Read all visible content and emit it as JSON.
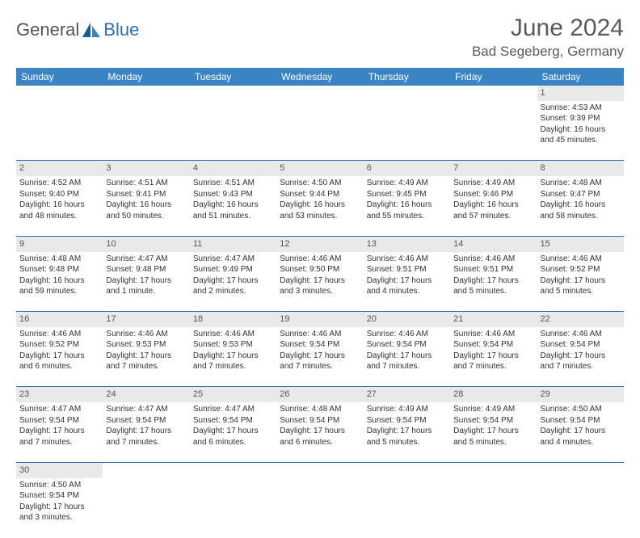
{
  "brand": {
    "name1": "General",
    "name2": "Blue"
  },
  "title": "June 2024",
  "location": "Bad Segeberg, Germany",
  "colors": {
    "header_bg": "#3b84c4",
    "header_fg": "#ffffff",
    "daynum_bg": "#e9e9e9",
    "rule": "#2f6fb0",
    "brand_blue": "#2f6fb0",
    "text": "#333333"
  },
  "fonts": {
    "title_pt": 30,
    "location_pt": 17,
    "th_pt": 12,
    "cell_pt": 10,
    "daynum_pt": 11
  },
  "day_headers": [
    "Sunday",
    "Monday",
    "Tuesday",
    "Wednesday",
    "Thursday",
    "Friday",
    "Saturday"
  ],
  "weeks": [
    {
      "nums": [
        "",
        "",
        "",
        "",
        "",
        "",
        "1"
      ],
      "cells": [
        null,
        null,
        null,
        null,
        null,
        null,
        {
          "sunrise": "Sunrise: 4:53 AM",
          "sunset": "Sunset: 9:39 PM",
          "day1": "Daylight: 16 hours",
          "day2": "and 45 minutes."
        }
      ]
    },
    {
      "nums": [
        "2",
        "3",
        "4",
        "5",
        "6",
        "7",
        "8"
      ],
      "cells": [
        {
          "sunrise": "Sunrise: 4:52 AM",
          "sunset": "Sunset: 9:40 PM",
          "day1": "Daylight: 16 hours",
          "day2": "and 48 minutes."
        },
        {
          "sunrise": "Sunrise: 4:51 AM",
          "sunset": "Sunset: 9:41 PM",
          "day1": "Daylight: 16 hours",
          "day2": "and 50 minutes."
        },
        {
          "sunrise": "Sunrise: 4:51 AM",
          "sunset": "Sunset: 9:43 PM",
          "day1": "Daylight: 16 hours",
          "day2": "and 51 minutes."
        },
        {
          "sunrise": "Sunrise: 4:50 AM",
          "sunset": "Sunset: 9:44 PM",
          "day1": "Daylight: 16 hours",
          "day2": "and 53 minutes."
        },
        {
          "sunrise": "Sunrise: 4:49 AM",
          "sunset": "Sunset: 9:45 PM",
          "day1": "Daylight: 16 hours",
          "day2": "and 55 minutes."
        },
        {
          "sunrise": "Sunrise: 4:49 AM",
          "sunset": "Sunset: 9:46 PM",
          "day1": "Daylight: 16 hours",
          "day2": "and 57 minutes."
        },
        {
          "sunrise": "Sunrise: 4:48 AM",
          "sunset": "Sunset: 9:47 PM",
          "day1": "Daylight: 16 hours",
          "day2": "and 58 minutes."
        }
      ]
    },
    {
      "nums": [
        "9",
        "10",
        "11",
        "12",
        "13",
        "14",
        "15"
      ],
      "cells": [
        {
          "sunrise": "Sunrise: 4:48 AM",
          "sunset": "Sunset: 9:48 PM",
          "day1": "Daylight: 16 hours",
          "day2": "and 59 minutes."
        },
        {
          "sunrise": "Sunrise: 4:47 AM",
          "sunset": "Sunset: 9:48 PM",
          "day1": "Daylight: 17 hours",
          "day2": "and 1 minute."
        },
        {
          "sunrise": "Sunrise: 4:47 AM",
          "sunset": "Sunset: 9:49 PM",
          "day1": "Daylight: 17 hours",
          "day2": "and 2 minutes."
        },
        {
          "sunrise": "Sunrise: 4:46 AM",
          "sunset": "Sunset: 9:50 PM",
          "day1": "Daylight: 17 hours",
          "day2": "and 3 minutes."
        },
        {
          "sunrise": "Sunrise: 4:46 AM",
          "sunset": "Sunset: 9:51 PM",
          "day1": "Daylight: 17 hours",
          "day2": "and 4 minutes."
        },
        {
          "sunrise": "Sunrise: 4:46 AM",
          "sunset": "Sunset: 9:51 PM",
          "day1": "Daylight: 17 hours",
          "day2": "and 5 minutes."
        },
        {
          "sunrise": "Sunrise: 4:46 AM",
          "sunset": "Sunset: 9:52 PM",
          "day1": "Daylight: 17 hours",
          "day2": "and 5 minutes."
        }
      ]
    },
    {
      "nums": [
        "16",
        "17",
        "18",
        "19",
        "20",
        "21",
        "22"
      ],
      "cells": [
        {
          "sunrise": "Sunrise: 4:46 AM",
          "sunset": "Sunset: 9:52 PM",
          "day1": "Daylight: 17 hours",
          "day2": "and 6 minutes."
        },
        {
          "sunrise": "Sunrise: 4:46 AM",
          "sunset": "Sunset: 9:53 PM",
          "day1": "Daylight: 17 hours",
          "day2": "and 7 minutes."
        },
        {
          "sunrise": "Sunrise: 4:46 AM",
          "sunset": "Sunset: 9:53 PM",
          "day1": "Daylight: 17 hours",
          "day2": "and 7 minutes."
        },
        {
          "sunrise": "Sunrise: 4:46 AM",
          "sunset": "Sunset: 9:54 PM",
          "day1": "Daylight: 17 hours",
          "day2": "and 7 minutes."
        },
        {
          "sunrise": "Sunrise: 4:46 AM",
          "sunset": "Sunset: 9:54 PM",
          "day1": "Daylight: 17 hours",
          "day2": "and 7 minutes."
        },
        {
          "sunrise": "Sunrise: 4:46 AM",
          "sunset": "Sunset: 9:54 PM",
          "day1": "Daylight: 17 hours",
          "day2": "and 7 minutes."
        },
        {
          "sunrise": "Sunrise: 4:46 AM",
          "sunset": "Sunset: 9:54 PM",
          "day1": "Daylight: 17 hours",
          "day2": "and 7 minutes."
        }
      ]
    },
    {
      "nums": [
        "23",
        "24",
        "25",
        "26",
        "27",
        "28",
        "29"
      ],
      "cells": [
        {
          "sunrise": "Sunrise: 4:47 AM",
          "sunset": "Sunset: 9:54 PM",
          "day1": "Daylight: 17 hours",
          "day2": "and 7 minutes."
        },
        {
          "sunrise": "Sunrise: 4:47 AM",
          "sunset": "Sunset: 9:54 PM",
          "day1": "Daylight: 17 hours",
          "day2": "and 7 minutes."
        },
        {
          "sunrise": "Sunrise: 4:47 AM",
          "sunset": "Sunset: 9:54 PM",
          "day1": "Daylight: 17 hours",
          "day2": "and 6 minutes."
        },
        {
          "sunrise": "Sunrise: 4:48 AM",
          "sunset": "Sunset: 9:54 PM",
          "day1": "Daylight: 17 hours",
          "day2": "and 6 minutes."
        },
        {
          "sunrise": "Sunrise: 4:49 AM",
          "sunset": "Sunset: 9:54 PM",
          "day1": "Daylight: 17 hours",
          "day2": "and 5 minutes."
        },
        {
          "sunrise": "Sunrise: 4:49 AM",
          "sunset": "Sunset: 9:54 PM",
          "day1": "Daylight: 17 hours",
          "day2": "and 5 minutes."
        },
        {
          "sunrise": "Sunrise: 4:50 AM",
          "sunset": "Sunset: 9:54 PM",
          "day1": "Daylight: 17 hours",
          "day2": "and 4 minutes."
        }
      ]
    },
    {
      "nums": [
        "30",
        "",
        "",
        "",
        "",
        "",
        ""
      ],
      "cells": [
        {
          "sunrise": "Sunrise: 4:50 AM",
          "sunset": "Sunset: 9:54 PM",
          "day1": "Daylight: 17 hours",
          "day2": "and 3 minutes."
        },
        null,
        null,
        null,
        null,
        null,
        null
      ]
    }
  ]
}
